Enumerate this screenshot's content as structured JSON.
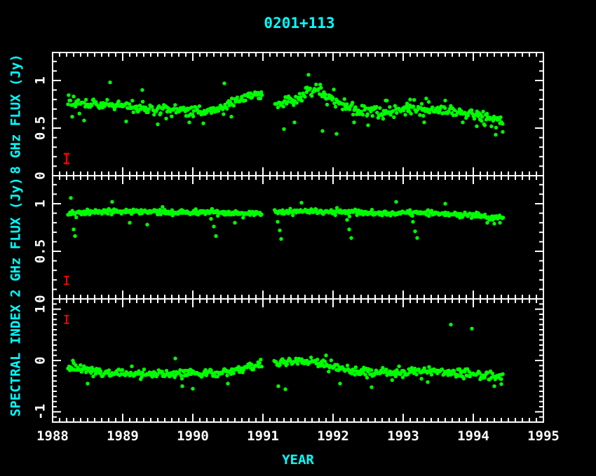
{
  "title": "0201+113",
  "xlabel": "YEAR",
  "colors": {
    "background": "#000000",
    "frame": "#ffffff",
    "tick_text": "#ffffff",
    "accent_text": "#00ffff",
    "data_points": "#00ff00",
    "error_bar": "#ff0000"
  },
  "x_axis": {
    "min": 1988,
    "max": 1995,
    "major_tick_values": [
      1988,
      1989,
      1990,
      1991,
      1992,
      1993,
      1994,
      1995
    ],
    "major_tick_labels": [
      "1988",
      "1989",
      "1990",
      "1991",
      "1992",
      "1993",
      "1994",
      "1995"
    ],
    "minor_step": 0.1
  },
  "chart_data": [
    {
      "type": "scatter",
      "ylabel": "8 GHz FLUX (Jy)",
      "marker": "filled-circle",
      "marker_color": "#00ff00",
      "ylim": [
        0,
        1.294
      ],
      "yticks": {
        "values": [
          0,
          0.5,
          1
        ],
        "labels": [
          "0",
          "0.5",
          "1"
        ],
        "minor_step": 0.1
      },
      "x_range": [
        1988.22,
        1994.43
      ],
      "gaps": [
        [
          1990.99,
          1991.16
        ]
      ],
      "trend": [
        [
          1988.22,
          0.77
        ],
        [
          1988.5,
          0.74
        ],
        [
          1988.8,
          0.74
        ],
        [
          1989.0,
          0.72
        ],
        [
          1989.3,
          0.7
        ],
        [
          1989.67,
          0.69
        ],
        [
          1990.0,
          0.68
        ],
        [
          1990.3,
          0.68
        ],
        [
          1990.55,
          0.76
        ],
        [
          1990.83,
          0.84
        ],
        [
          1990.97,
          0.84
        ],
        [
          1991.17,
          0.77
        ],
        [
          1991.33,
          0.76
        ],
        [
          1991.5,
          0.82
        ],
        [
          1991.67,
          0.89
        ],
        [
          1991.8,
          0.9
        ],
        [
          1992.0,
          0.82
        ],
        [
          1992.2,
          0.72
        ],
        [
          1992.33,
          0.68
        ],
        [
          1992.7,
          0.67
        ],
        [
          1993.0,
          0.69
        ],
        [
          1993.3,
          0.7
        ],
        [
          1993.5,
          0.69
        ],
        [
          1993.75,
          0.66
        ],
        [
          1994.0,
          0.64
        ],
        [
          1994.2,
          0.6
        ],
        [
          1994.43,
          0.55
        ]
      ],
      "outliers": [
        [
          1988.28,
          0.62
        ],
        [
          1988.45,
          0.58
        ],
        [
          1988.82,
          0.98
        ],
        [
          1989.05,
          0.57
        ],
        [
          1989.28,
          0.9
        ],
        [
          1989.5,
          0.54
        ],
        [
          1989.62,
          0.6
        ],
        [
          1989.95,
          0.56
        ],
        [
          1990.15,
          0.55
        ],
        [
          1990.45,
          0.97
        ],
        [
          1990.55,
          0.62
        ],
        [
          1991.3,
          0.49
        ],
        [
          1991.45,
          0.56
        ],
        [
          1991.65,
          1.06
        ],
        [
          1991.85,
          0.47
        ],
        [
          1992.05,
          0.44
        ],
        [
          1992.3,
          0.56
        ],
        [
          1992.5,
          0.53
        ],
        [
          1992.75,
          0.79
        ],
        [
          1993.1,
          0.8
        ],
        [
          1993.3,
          0.56
        ],
        [
          1993.6,
          0.79
        ],
        [
          1993.85,
          0.56
        ],
        [
          1994.05,
          0.52
        ],
        [
          1994.32,
          0.43
        ],
        [
          1994.42,
          0.46
        ]
      ],
      "scatter_sigma": 0.03,
      "sample_step": 0.0125,
      "typical_errorbar": {
        "x": 1988.2,
        "y": 0.18,
        "yerr": 0.05,
        "color": "#ff0000"
      }
    },
    {
      "type": "scatter",
      "ylabel": "2 GHz FLUX (Jy)",
      "marker": "filled-circle",
      "marker_color": "#00ff00",
      "ylim": [
        0,
        1.294
      ],
      "yticks": {
        "values": [
          0,
          0.5,
          1
        ],
        "labels": [
          "0",
          "0.5",
          "1"
        ],
        "minor_step": 0.1
      },
      "x_range": [
        1988.22,
        1994.43
      ],
      "gaps": [
        [
          1990.99,
          1991.16
        ]
      ],
      "trend": [
        [
          1988.22,
          0.9
        ],
        [
          1988.7,
          0.91
        ],
        [
          1989.2,
          0.92
        ],
        [
          1989.7,
          0.91
        ],
        [
          1990.2,
          0.91
        ],
        [
          1990.7,
          0.9
        ],
        [
          1991.2,
          0.91
        ],
        [
          1991.7,
          0.92
        ],
        [
          1992.2,
          0.91
        ],
        [
          1992.7,
          0.9
        ],
        [
          1993.2,
          0.91
        ],
        [
          1993.7,
          0.89
        ],
        [
          1994.0,
          0.88
        ],
        [
          1994.25,
          0.85
        ],
        [
          1994.43,
          0.86
        ]
      ],
      "outliers": [
        [
          1988.26,
          1.06
        ],
        [
          1988.3,
          0.73
        ],
        [
          1988.32,
          0.66
        ],
        [
          1988.85,
          1.02
        ],
        [
          1989.1,
          0.8
        ],
        [
          1989.35,
          0.78
        ],
        [
          1990.26,
          0.84
        ],
        [
          1990.3,
          0.76
        ],
        [
          1990.33,
          0.66
        ],
        [
          1990.6,
          0.8
        ],
        [
          1991.21,
          0.81
        ],
        [
          1991.24,
          0.72
        ],
        [
          1991.26,
          0.63
        ],
        [
          1991.55,
          1.01
        ],
        [
          1992.2,
          0.83
        ],
        [
          1992.23,
          0.73
        ],
        [
          1992.26,
          0.64
        ],
        [
          1992.9,
          1.02
        ],
        [
          1993.14,
          0.81
        ],
        [
          1993.17,
          0.71
        ],
        [
          1993.2,
          0.64
        ],
        [
          1993.6,
          1.0
        ],
        [
          1994.2,
          0.8
        ],
        [
          1994.3,
          0.79
        ],
        [
          1994.38,
          0.8
        ]
      ],
      "scatter_sigma": 0.013,
      "sample_step": 0.011,
      "typical_errorbar": {
        "x": 1988.2,
        "y": 0.195,
        "yerr": 0.04,
        "color": "#ff0000"
      }
    },
    {
      "type": "scatter",
      "ylabel": "SPECTRAL INDEX",
      "marker": "filled-circle",
      "marker_color": "#00ff00",
      "ylim": [
        -1.2,
        1.2
      ],
      "yticks": {
        "values": [
          -1,
          0,
          1
        ],
        "labels": [
          "-1",
          "0",
          "1"
        ],
        "minor_step": 0.1
      },
      "x_range": [
        1988.22,
        1994.43
      ],
      "gaps": [
        [
          1990.99,
          1991.16
        ]
      ],
      "trend": [
        [
          1988.22,
          -0.17
        ],
        [
          1988.6,
          -0.22
        ],
        [
          1989.0,
          -0.25
        ],
        [
          1989.5,
          -0.27
        ],
        [
          1990.0,
          -0.26
        ],
        [
          1990.35,
          -0.25
        ],
        [
          1990.67,
          -0.19
        ],
        [
          1990.97,
          -0.06
        ],
        [
          1991.17,
          -0.03
        ],
        [
          1991.45,
          -0.02
        ],
        [
          1991.7,
          -0.02
        ],
        [
          1992.0,
          -0.12
        ],
        [
          1992.3,
          -0.22
        ],
        [
          1992.6,
          -0.25
        ],
        [
          1993.0,
          -0.23
        ],
        [
          1993.17,
          -0.2
        ],
        [
          1993.5,
          -0.23
        ],
        [
          1993.83,
          -0.25
        ],
        [
          1994.1,
          -0.28
        ],
        [
          1994.43,
          -0.34
        ]
      ],
      "outliers": [
        [
          1988.3,
          -0.05
        ],
        [
          1988.5,
          -0.45
        ],
        [
          1989.75,
          0.04
        ],
        [
          1989.85,
          -0.5
        ],
        [
          1990.0,
          -0.55
        ],
        [
          1990.5,
          -0.45
        ],
        [
          1991.22,
          -0.5
        ],
        [
          1991.32,
          -0.56
        ],
        [
          1991.9,
          0.1
        ],
        [
          1992.1,
          -0.45
        ],
        [
          1992.55,
          -0.52
        ],
        [
          1993.35,
          -0.42
        ],
        [
          1993.68,
          0.7
        ],
        [
          1993.98,
          0.62
        ],
        [
          1994.3,
          -0.5
        ],
        [
          1994.4,
          -0.46
        ]
      ],
      "scatter_sigma": 0.04,
      "sample_step": 0.0125,
      "typical_errorbar": {
        "x": 1988.2,
        "y": 0.8,
        "yerr": 0.075,
        "color": "#ff0000"
      }
    }
  ]
}
